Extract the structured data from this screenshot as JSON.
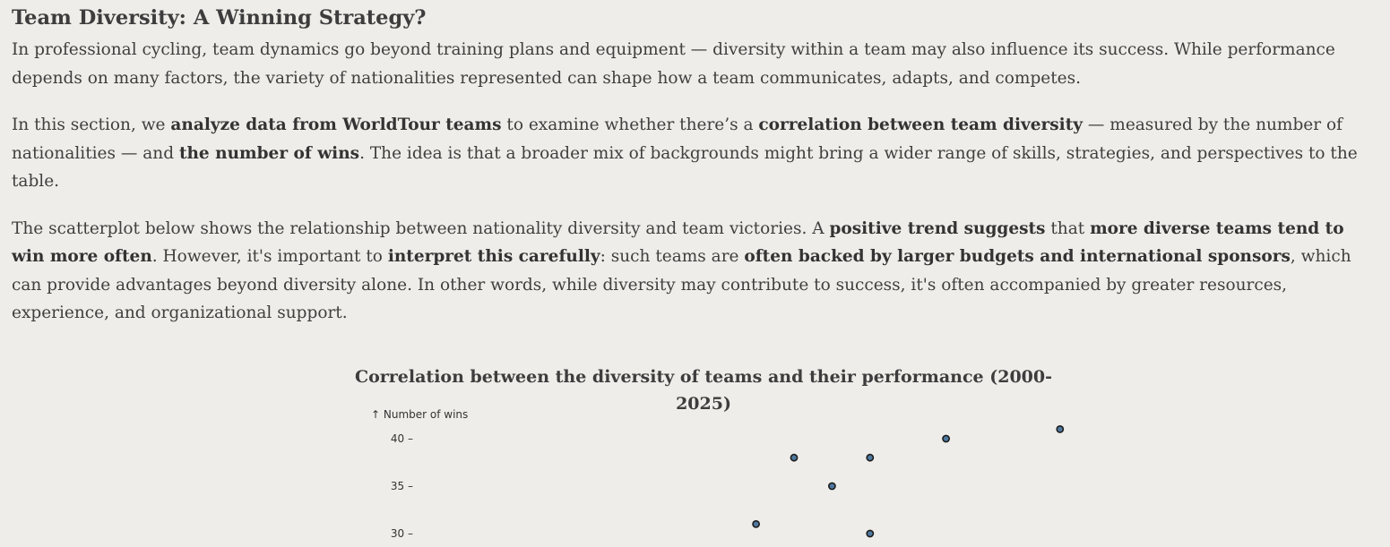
{
  "section": {
    "heading": "Team Diversity: A Winning Strategy?",
    "p1": "In professional cycling, team dynamics go beyond training plans and equipment — diversity within a team may also influence its success. While performance depends on many factors, the variety of nationalities represented can shape how a team communicates, adapts, and competes.",
    "p2": [
      {
        "t": "In this section, we ",
        "b": false
      },
      {
        "t": "analyze data from WorldTour teams",
        "b": true
      },
      {
        "t": " to examine whether there’s a ",
        "b": false
      },
      {
        "t": "correlation between team diversity",
        "b": true
      },
      {
        "t": " — measured by the number of nationalities — and ",
        "b": false
      },
      {
        "t": "the number of wins",
        "b": true
      },
      {
        "t": ". The idea is that a broader mix of backgrounds might bring a wider range of skills, strategies, and perspectives to the table.",
        "b": false
      }
    ],
    "p3": [
      {
        "t": "The scatterplot below shows the relationship between nationality diversity and team victories. A ",
        "b": false
      },
      {
        "t": "positive trend suggests",
        "b": true
      },
      {
        "t": " that ",
        "b": false
      },
      {
        "t": "more diverse teams tend to win more often",
        "b": true
      },
      {
        "t": ". However, it's important to ",
        "b": false
      },
      {
        "t": "interpret this carefully",
        "b": true
      },
      {
        "t": ": such teams are ",
        "b": false
      },
      {
        "t": "often backed by larger budgets and international sponsors",
        "b": true
      },
      {
        "t": ", which can provide advantages beyond diversity alone. In other words, while diversity may contribute to success, it's often accompanied by greater resources, experience, and organizational support.",
        "b": false
      }
    ]
  },
  "chart_data": {
    "type": "scatter",
    "title": "Correlation between the diversity of teams and their performance (2000-2025)",
    "ylabel": "↑ Number of wins",
    "xlabel": "",
    "yticks": [
      40,
      35,
      30
    ],
    "ylim": [
      29,
      42
    ],
    "xlim": [
      0,
      20
    ],
    "points": [
      {
        "x": 10.0,
        "y": 38
      },
      {
        "x": 12.0,
        "y": 38
      },
      {
        "x": 14.0,
        "y": 40
      },
      {
        "x": 17.0,
        "y": 41
      },
      {
        "x": 11.0,
        "y": 35
      },
      {
        "x": 9.0,
        "y": 31
      },
      {
        "x": 12.0,
        "y": 30
      }
    ],
    "point_color": "#4e78a0"
  }
}
